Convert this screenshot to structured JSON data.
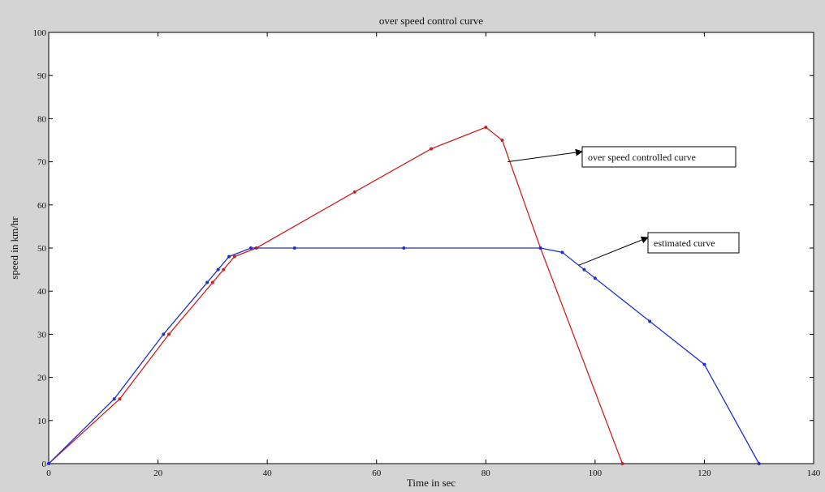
{
  "chart_data": {
    "type": "line",
    "title": "over speed control curve",
    "xlabel": "Time in sec",
    "ylabel": "speed in km/hr",
    "xlim": [
      0,
      140
    ],
    "ylim": [
      0,
      100
    ],
    "xticks": [
      0,
      20,
      40,
      60,
      80,
      100,
      120,
      140
    ],
    "yticks": [
      0,
      10,
      20,
      30,
      40,
      50,
      60,
      70,
      80,
      90,
      100
    ],
    "grid": false,
    "series": [
      {
        "color": "#d02020",
        "points": [
          [
            0,
            0
          ],
          [
            13,
            15
          ],
          [
            22,
            30
          ],
          [
            30,
            42
          ],
          [
            32,
            45
          ],
          [
            34,
            48
          ],
          [
            38,
            50
          ],
          [
            56,
            63
          ],
          [
            70,
            73
          ],
          [
            80,
            78
          ],
          [
            83,
            75
          ],
          [
            90,
            50
          ],
          [
            105,
            0
          ]
        ]
      },
      {
        "color": "#2030d0",
        "points": [
          [
            0,
            0
          ],
          [
            12,
            15
          ],
          [
            21,
            30
          ],
          [
            29,
            42
          ],
          [
            31,
            45
          ],
          [
            33,
            48
          ],
          [
            37,
            50
          ],
          [
            45,
            50
          ],
          [
            65,
            50
          ],
          [
            90,
            50
          ],
          [
            94,
            49
          ],
          [
            98,
            45
          ],
          [
            100,
            43
          ],
          [
            110,
            33
          ],
          [
            120,
            23
          ],
          [
            130,
            0
          ]
        ]
      }
    ],
    "annotations": [
      {
        "text": "over speed controlled curve",
        "series": 0,
        "target": [
          84,
          70
        ]
      },
      {
        "text": "estimated curve",
        "series": 1,
        "target": [
          97,
          46
        ]
      }
    ]
  }
}
